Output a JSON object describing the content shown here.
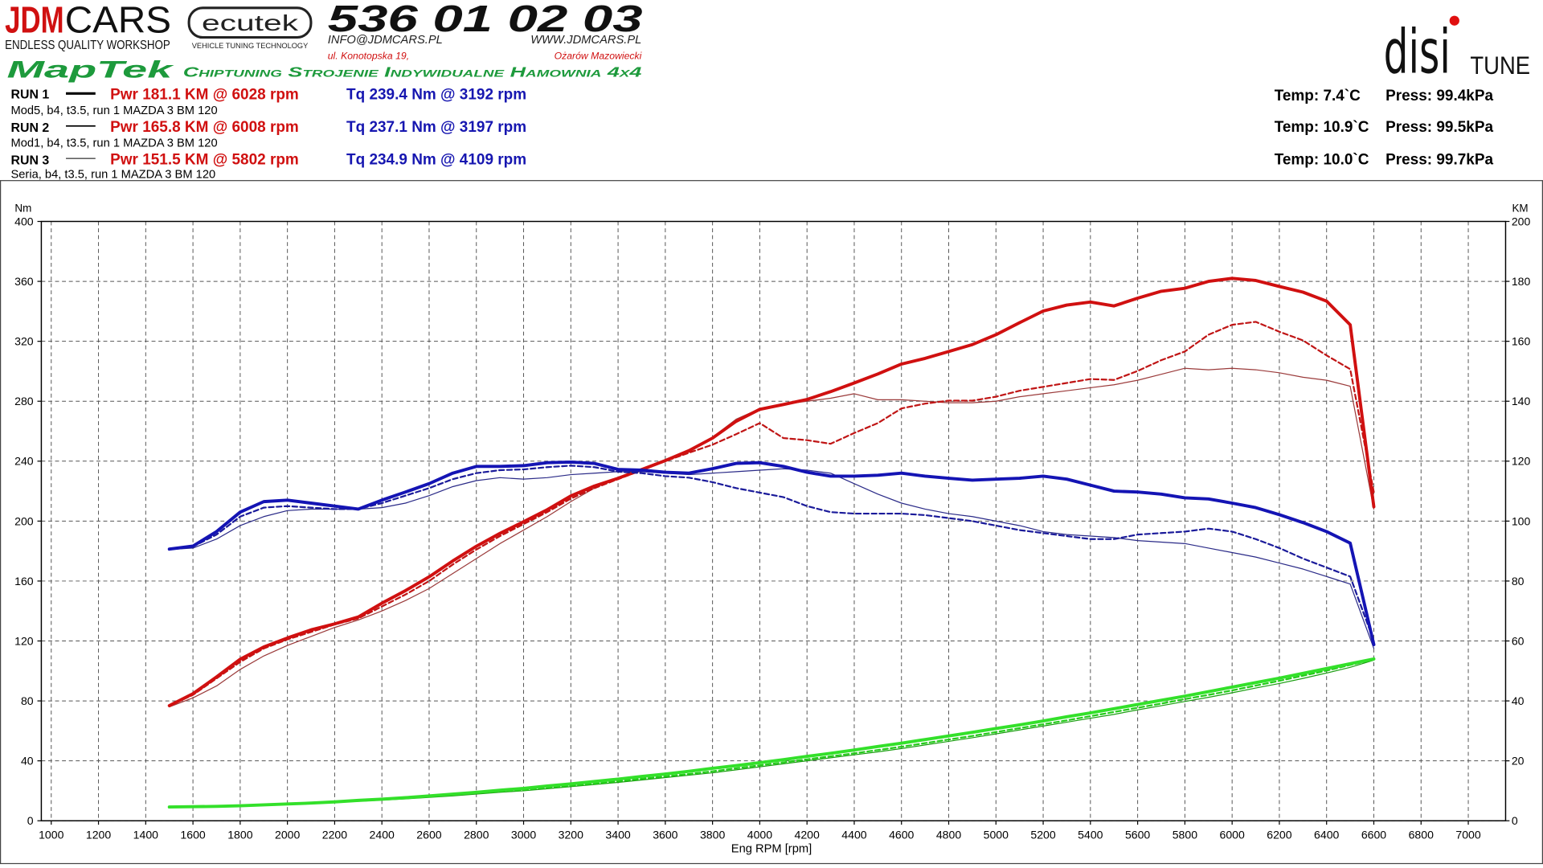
{
  "header": {
    "brand": "JDM",
    "brand2": "CARS",
    "tagline": "ENDLESS QUALITY WORKSHOP",
    "partner": "ecutek",
    "partner_tagline": "VEHICLE TUNING TECHNOLOGY",
    "phone": "536 01 02 03",
    "email": "INFO@JDMCARS.PL",
    "website": "WWW.JDMCARS.PL",
    "address": "ul. Konotopska 19,",
    "city": "Ożarów Mazowiecki",
    "maptek": "MapTek",
    "services": "Chiptuning Strojenie Indywidualne Hamownia 4x4",
    "disi": "disi",
    "tune": "TUNE"
  },
  "runs": [
    {
      "label": "RUN 1",
      "description": "Mod5, b4, t3.5, run 1 MAZDA 3 BM 120",
      "power": "Pwr  181.1 KM @ 6028 rpm",
      "torque": "Tq 239.4 Nm @ 3192 rpm",
      "temp": "Temp: 7.4`C",
      "press": "Press: 99.4kPa"
    },
    {
      "label": "RUN 2",
      "description": "Mod1, b4, t3.5, run 1 MAZDA 3 BM 120",
      "power": "Pwr  165.8 KM @ 6008 rpm",
      "torque": "Tq 237.1 Nm @ 3197 rpm",
      "temp": "Temp: 10.9`C",
      "press": "Press: 99.5kPa"
    },
    {
      "label": "RUN 3",
      "description": "Seria, b4, t3.5, run 1 MAZDA 3 BM 120",
      "power": "Pwr  151.5 KM @ 5802 rpm",
      "torque": "Tq 234.9 Nm @ 4109 rpm",
      "temp": "Temp: 10.0`C",
      "press": "Press: 99.7kPa"
    }
  ],
  "chart_data": {
    "type": "line",
    "x_label": "Eng RPM [rpm]",
    "y_label": "Nm",
    "y2_label": "KM",
    "grid": true,
    "xlim": [
      958,
      7158
    ],
    "xticks": [
      1000,
      1200,
      1400,
      1600,
      1800,
      2000,
      2200,
      2400,
      2600,
      2800,
      3000,
      3200,
      3400,
      3600,
      3800,
      4000,
      4200,
      4400,
      4600,
      4800,
      5000,
      5200,
      5400,
      5600,
      5800,
      6000,
      6200,
      6400,
      6600,
      6800,
      7000
    ],
    "ylim": [
      0,
      400
    ],
    "yticks": [
      0,
      40,
      80,
      120,
      160,
      200,
      240,
      280,
      320,
      360,
      400
    ],
    "y2lim": [
      0,
      200
    ],
    "y2ticks": [
      0,
      20,
      40,
      60,
      80,
      100,
      120,
      140,
      160,
      180,
      200
    ],
    "x": [
      1500,
      1600,
      1700,
      1800,
      1900,
      2000,
      2100,
      2200,
      2300,
      2400,
      2500,
      2600,
      2700,
      2800,
      2900,
      3000,
      3100,
      3200,
      3300,
      3400,
      3500,
      3600,
      3700,
      3800,
      3900,
      4000,
      4100,
      4200,
      4300,
      4400,
      4500,
      4600,
      4700,
      4800,
      4900,
      5000,
      5100,
      5200,
      5300,
      5400,
      5500,
      5600,
      5700,
      5800,
      5900,
      6000,
      6100,
      6200,
      6300,
      6400,
      6500,
      6600
    ],
    "series": [
      {
        "color": "#1a9e10",
        "width": 1,
        "dash": "none",
        "axis": "y2",
        "values": [
          4.6,
          4.7,
          4.8,
          5.0,
          5.2,
          5.5,
          5.8,
          6.1,
          6.5,
          6.9,
          7.3,
          7.8,
          8.3,
          8.9,
          9.5,
          10.0,
          10.7,
          11.4,
          12.1,
          12.8,
          13.6,
          14.4,
          15.2,
          16.0,
          17.0,
          18.0,
          19.0,
          20.0,
          21.0,
          22.0,
          23.0,
          24.1,
          25.3,
          26.5,
          27.7,
          29.0,
          30.3,
          31.6,
          32.9,
          34.2,
          35.5,
          37.0,
          38.4,
          39.8,
          41.2,
          42.7,
          44.3,
          45.8,
          47.5,
          49.3,
          51.2,
          53.6
        ]
      },
      {
        "color": "#22cc18",
        "width": 1.8,
        "dash": "5 3",
        "axis": "y2",
        "values": [
          4.6,
          4.7,
          4.8,
          5.0,
          5.3,
          5.6,
          5.9,
          6.3,
          6.7,
          7.1,
          7.6,
          8.1,
          8.7,
          9.3,
          9.8,
          10.3,
          11.0,
          11.7,
          12.4,
          13.2,
          14.0,
          14.8,
          15.6,
          16.5,
          17.5,
          18.5,
          19.5,
          20.5,
          21.5,
          22.5,
          23.6,
          24.7,
          25.9,
          27.1,
          28.3,
          29.6,
          30.9,
          32.2,
          33.5,
          34.9,
          36.3,
          37.7,
          39.1,
          40.6,
          42.0,
          43.5,
          45.1,
          46.7,
          48.4,
          50.1,
          52.0,
          53.8
        ]
      },
      {
        "color": "#33e02a",
        "width": 3.2,
        "dash": "none",
        "axis": "y2",
        "values": [
          4.6,
          4.7,
          4.8,
          5.0,
          5.3,
          5.6,
          5.9,
          6.3,
          6.8,
          7.2,
          7.7,
          8.3,
          8.9,
          9.5,
          10.2,
          10.8,
          11.6,
          12.3,
          13.1,
          13.9,
          14.8,
          15.6,
          16.5,
          17.5,
          18.4,
          19.4,
          20.4,
          21.5,
          22.5,
          23.6,
          24.8,
          25.9,
          27.1,
          28.3,
          29.5,
          30.8,
          32.0,
          33.3,
          34.7,
          36.0,
          37.4,
          38.8,
          40.2,
          41.6,
          43.1,
          44.6,
          46.1,
          47.6,
          49.2,
          50.8,
          52.4,
          54.0
        ]
      },
      {
        "color": "#9b3b3b",
        "width": 1,
        "dash": "none",
        "axis": "y2",
        "values": [
          38,
          41,
          45,
          50.5,
          55,
          58.5,
          61.5,
          64.5,
          67,
          70,
          73.5,
          77.5,
          82.5,
          87.5,
          92.5,
          97,
          101.5,
          106.5,
          111,
          114.5,
          117.5,
          120,
          123,
          128,
          134,
          137.5,
          139,
          140,
          141,
          142.5,
          140.5,
          140.5,
          140,
          139.5,
          139.5,
          140,
          141.5,
          142.5,
          143.5,
          144.5,
          145.5,
          147,
          149,
          151,
          150.5,
          151,
          150.5,
          149.5,
          148,
          147,
          145,
          104
        ]
      },
      {
        "color": "#c01515",
        "width": 1.8,
        "dash": "5 3",
        "axis": "y2",
        "values": [
          38.4,
          42,
          47.5,
          53,
          57.5,
          60.5,
          63,
          65.5,
          67.5,
          71.5,
          75.5,
          80,
          85.5,
          90.5,
          95,
          99,
          103,
          107.5,
          111,
          114,
          117,
          120,
          122.8,
          125.5,
          129,
          132.7,
          127.7,
          127,
          125.8,
          129.4,
          132.7,
          137.6,
          139.2,
          140.2,
          140.2,
          141.5,
          143.5,
          144.8,
          146.1,
          147.4,
          147.1,
          150.1,
          153.7,
          156.6,
          162.2,
          165.5,
          166.5,
          163.2,
          160.3,
          155.3,
          150.7,
          109.7
        ]
      },
      {
        "color": "#d01010",
        "width": 3.2,
        "dash": "none",
        "axis": "y2",
        "values": [
          38.4,
          42.4,
          48,
          53.9,
          58,
          61,
          63.7,
          65.7,
          68,
          72.6,
          76.8,
          81.4,
          86.7,
          91.6,
          95.9,
          99.8,
          103.8,
          108.4,
          111.7,
          114.3,
          117.2,
          120.2,
          123.5,
          127.7,
          133.3,
          137.3,
          138.9,
          140.6,
          143.2,
          146.1,
          149.1,
          152.4,
          154.3,
          156.6,
          158.9,
          162.2,
          166.2,
          170.1,
          172.1,
          173.1,
          171.8,
          174.4,
          176.7,
          177.7,
          180,
          181,
          180.3,
          178.3,
          176.4,
          173.4,
          165.5,
          104.8
        ]
      },
      {
        "color": "#2b2b88",
        "width": 1,
        "dash": "none",
        "axis": "y",
        "values": [
          181,
          182,
          188,
          197,
          203,
          207,
          208,
          208,
          208,
          209,
          212,
          217,
          223,
          227,
          229,
          228,
          229,
          231,
          232,
          233,
          233,
          232,
          231,
          232,
          233,
          234,
          234.9,
          234,
          232,
          225,
          218,
          212,
          208,
          205,
          203,
          200,
          197,
          193,
          191,
          190,
          189,
          187,
          186,
          185,
          182,
          179,
          176,
          172,
          168,
          163,
          158,
          115
        ]
      },
      {
        "color": "#1a1a9a",
        "width": 1.8,
        "dash": "5 3",
        "axis": "y",
        "values": [
          181,
          183,
          191,
          203,
          209,
          210,
          209,
          208,
          208,
          212,
          217,
          222,
          228,
          232,
          234,
          234.5,
          236,
          237,
          236,
          233,
          232,
          230,
          229,
          226,
          222,
          219,
          216,
          210,
          206,
          205,
          205,
          205,
          204,
          202,
          200,
          197,
          194,
          192,
          190,
          188,
          188,
          191,
          192,
          193,
          195,
          193,
          188,
          182,
          175,
          169,
          163,
          120
        ]
      },
      {
        "color": "#1414b4",
        "width": 3.2,
        "dash": "none",
        "axis": "y",
        "values": [
          181.3,
          183.3,
          193,
          206,
          213,
          214,
          212,
          210,
          208,
          214,
          219.4,
          225,
          232,
          236.5,
          236.5,
          237,
          239,
          239.4,
          238.5,
          234.5,
          234,
          232.6,
          232,
          235,
          238.5,
          239,
          236.5,
          232.6,
          230,
          230,
          230.6,
          232,
          230,
          228.6,
          227.3,
          228,
          228.6,
          230,
          228,
          224,
          220,
          219.4,
          218,
          215.5,
          214.8,
          212,
          209,
          204.3,
          199,
          193,
          185.3,
          117.6
        ]
      }
    ]
  }
}
